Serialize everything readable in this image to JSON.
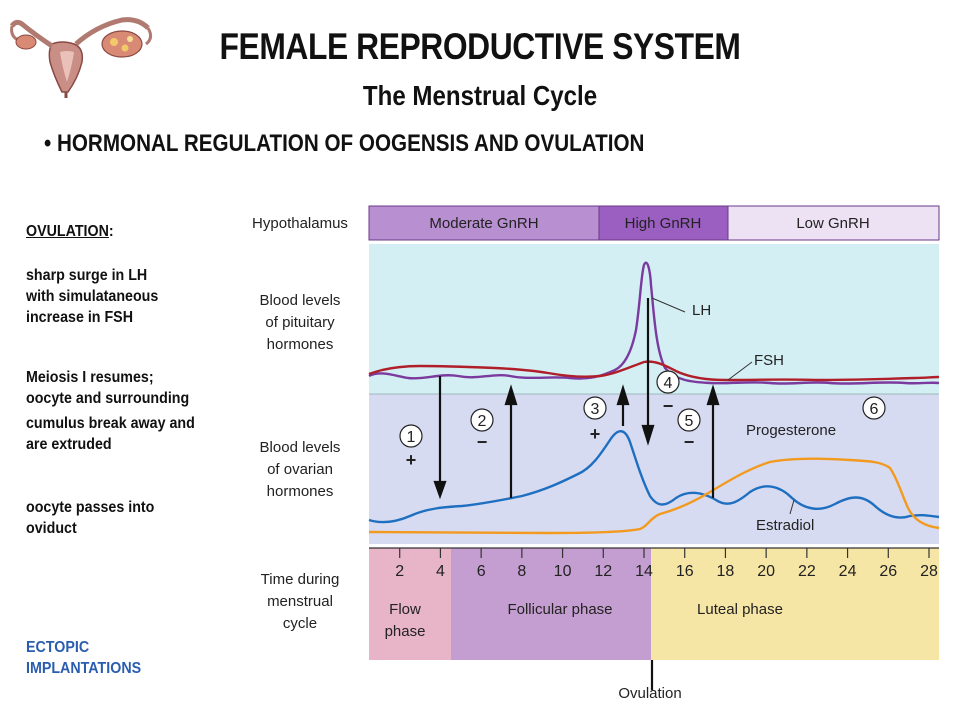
{
  "header": {
    "title": "FEMALE REPRODUCTIVE SYSTEM",
    "subtitle": "The Menstrual Cycle",
    "bullet": "• HORMONAL REGULATION OF OOGENSIS AND OVULATION"
  },
  "sidebar": {
    "heading": "OVULATION",
    "heading_colon": ":",
    "para1": [
      "sharp surge in LH",
      "with simulataneous",
      "increase in FSH"
    ],
    "para2": [
      "Meiosis I resumes;",
      "oocyte and surrounding",
      "cumulus break away and",
      "are extruded"
    ],
    "para3": [
      "oocyte passes into",
      "oviduct"
    ],
    "ectopic": [
      "ECTOPIC",
      "IMPLANTATIONS"
    ]
  },
  "diagram": {
    "row_labels": {
      "hypothalamus": "Hypothalamus",
      "pituitary": [
        "Blood levels",
        "of pituitary",
        "hormones"
      ],
      "ovarian": [
        "Blood levels",
        "of ovarian",
        "hormones"
      ],
      "time": [
        "Time during",
        "menstrual",
        "cycle"
      ]
    },
    "gnrh": [
      "Moderate GnRH",
      "High GnRH",
      "Low GnRH"
    ],
    "hormones": {
      "lh": "LH",
      "fsh": "FSH",
      "progesterone": "Progesterone",
      "estradiol": "Estradiol"
    },
    "steps": [
      {
        "num": "1",
        "sign": "+"
      },
      {
        "num": "2",
        "sign": "−"
      },
      {
        "num": "3",
        "sign": "+"
      },
      {
        "num": "4",
        "sign": "−"
      },
      {
        "num": "5",
        "sign": "−"
      },
      {
        "num": "6",
        "sign": ""
      }
    ],
    "days": [
      "2",
      "4",
      "6",
      "8",
      "10",
      "12",
      "14",
      "16",
      "18",
      "20",
      "22",
      "24",
      "26",
      "28"
    ],
    "phases": {
      "flow": [
        "Flow",
        "phase"
      ],
      "follicular": "Follicular phase",
      "luteal": "Luteal phase"
    },
    "ovulation": "Ovulation",
    "colors": {
      "gnrh_moderate": "#b88fd0",
      "gnrh_high": "#9a5fc0",
      "gnrh_low": "#ece2f4",
      "pituitary_bg": "#d4eff4",
      "ovarian_bg": "#d6dbf2",
      "lh": "#7a3a9e",
      "fsh": "#b01e2a",
      "progesterone": "#f29a1e",
      "estradiol": "#1f6fc0",
      "flow": "#e8b4c8",
      "follicular": "#c49ed0",
      "luteal": "#f6e6a6"
    }
  }
}
